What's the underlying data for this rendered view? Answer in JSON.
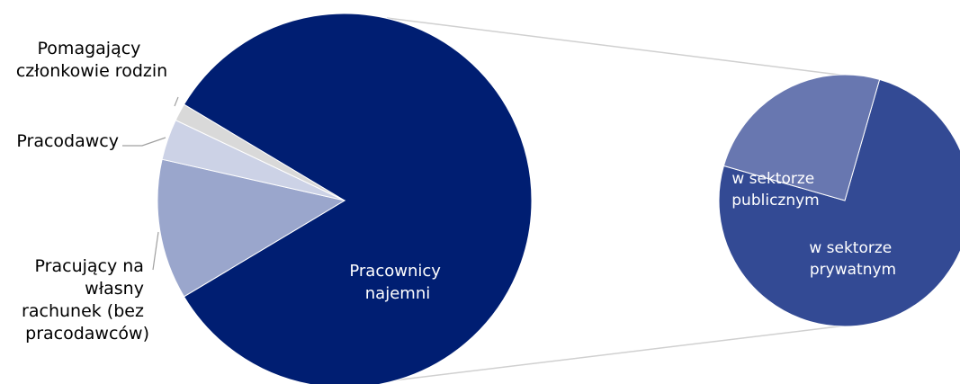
{
  "chart_data": {
    "type": "pie",
    "title": "",
    "main_pie": {
      "slices": [
        {
          "label": "Pracownicy najemni",
          "value": 82.0,
          "color": "#001e72"
        },
        {
          "label": "Pracujący na własny rachunek (bez pracodawców)",
          "value": 12.0,
          "color": "#9aa6cc"
        },
        {
          "label": "Pracodawcy",
          "value": 3.5,
          "color": "#ccd2e6"
        },
        {
          "label": "Pomagający członkowie rodzin",
          "value": 1.5,
          "color": "#d9d9d9"
        }
      ]
    },
    "secondary_pie": {
      "breakdown_of": "Pracownicy najemni",
      "slices": [
        {
          "label": "w sektorze publicznym",
          "value": 25.0,
          "color": "#6877b0"
        },
        {
          "label": "w sektorze prywatnym",
          "value": 75.0,
          "color": "#334a94"
        }
      ]
    },
    "colors": {
      "connector": "#d0d0d0",
      "leader": "#a0a0a0",
      "text_dark": "#000000",
      "text_light": "#ffffff"
    }
  },
  "labels": {
    "main_employees": [
      "Pracownicy",
      "najemni"
    ],
    "self_employed": [
      "Pracujący na",
      "własny",
      "rachunek (bez",
      "pracodawców)"
    ],
    "employers": [
      "Pracodawcy"
    ],
    "family_workers": [
      "Pomagający",
      "członkowie rodzin"
    ],
    "public_sector": [
      "w sektorze",
      "publicznym"
    ],
    "private_sector": [
      "w sektorze",
      "prywatnym"
    ]
  }
}
